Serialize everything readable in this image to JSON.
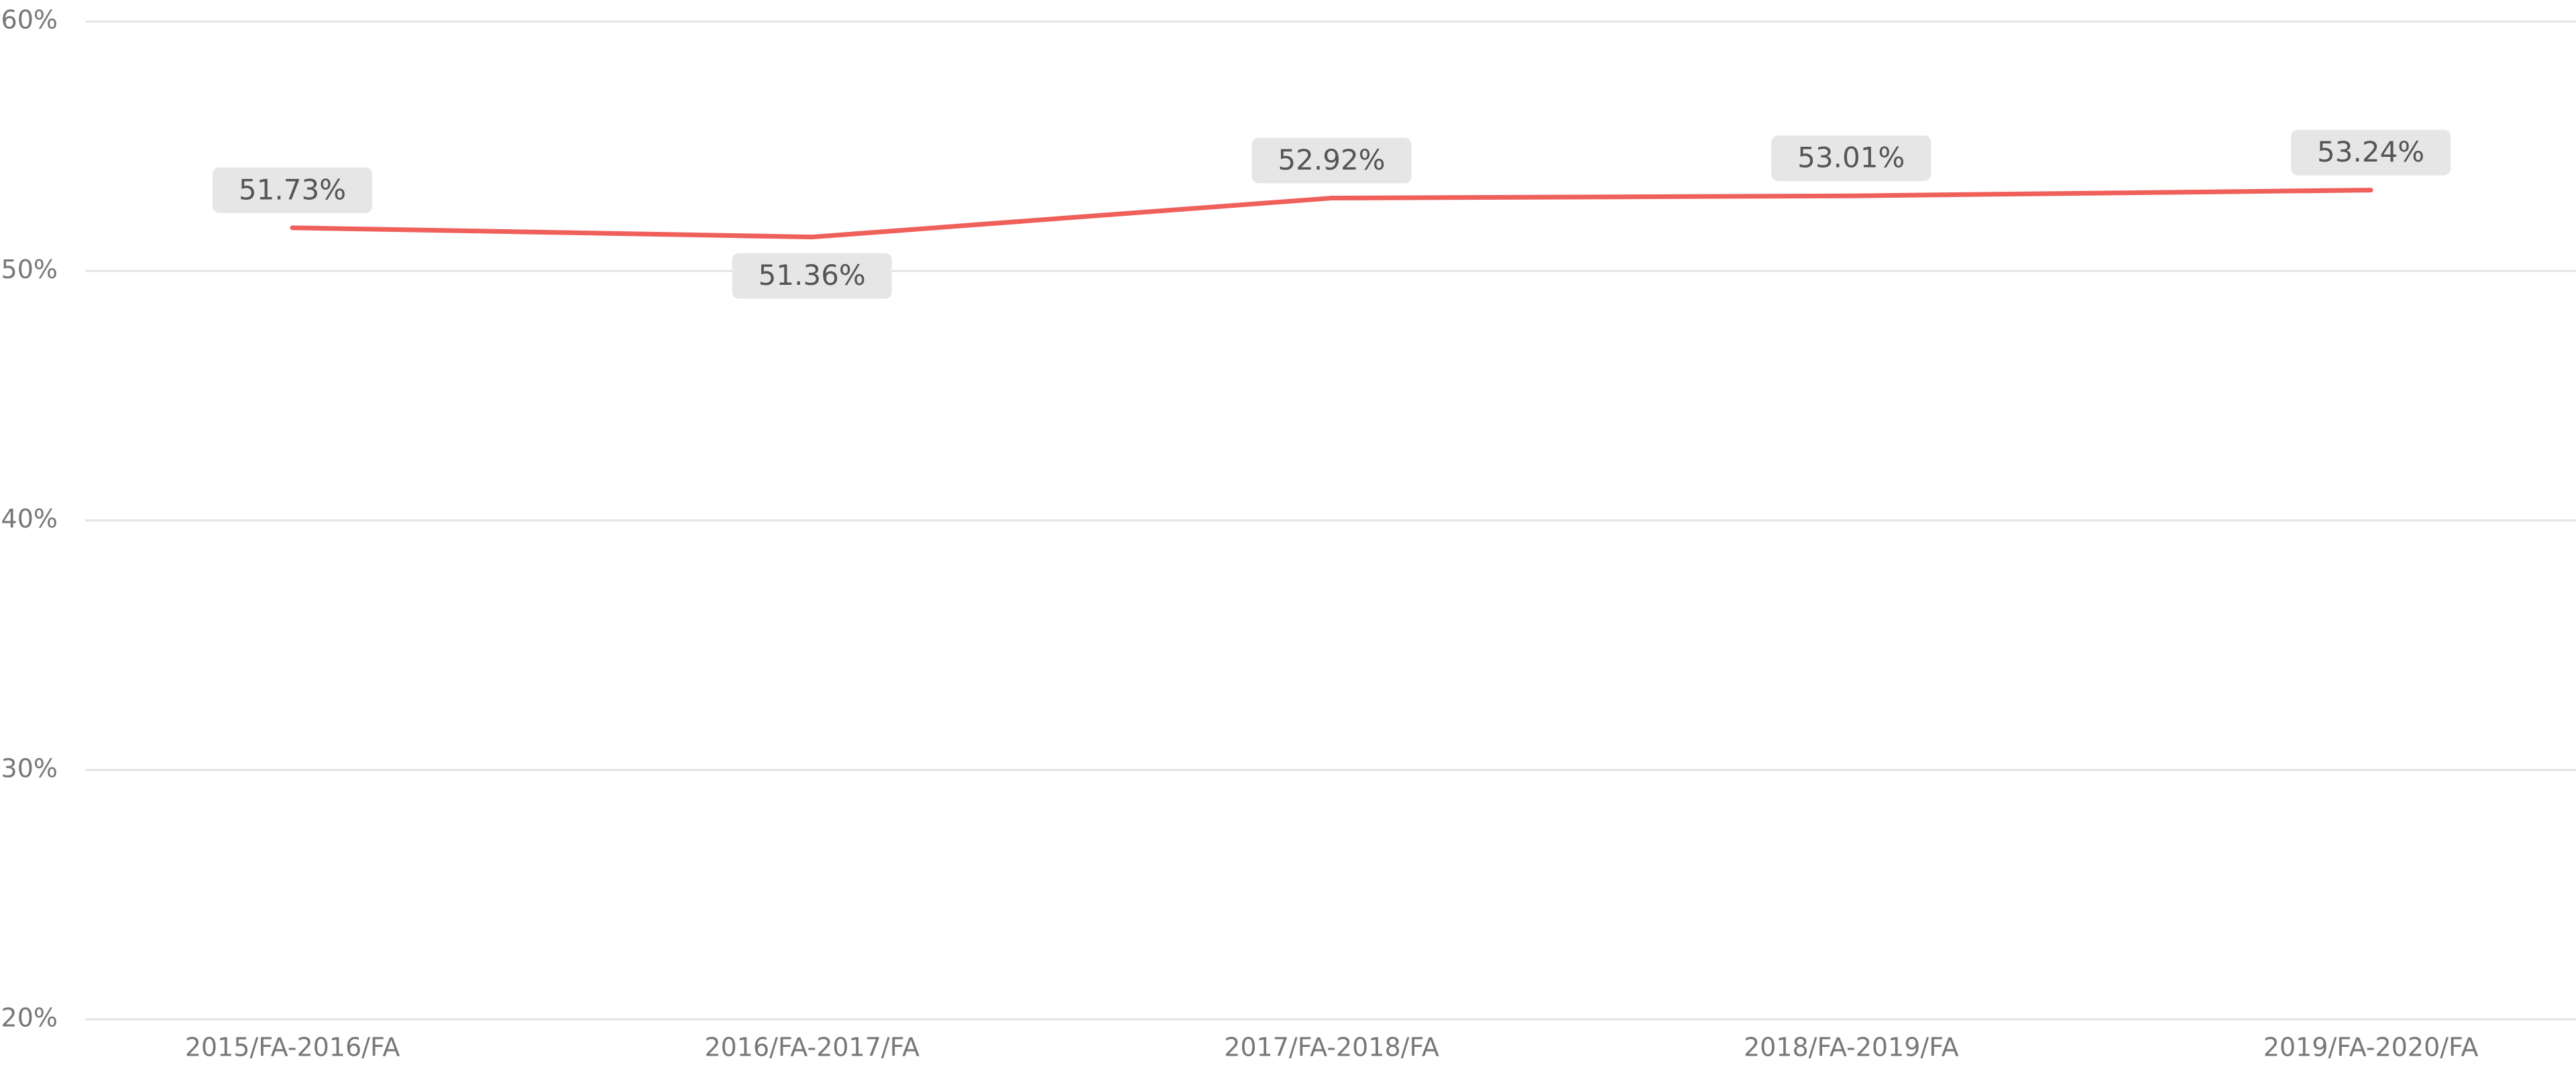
{
  "chart_data": {
    "type": "line",
    "categories": [
      "2015/FA-2016/FA",
      "2016/FA-2017/FA",
      "2017/FA-2018/FA",
      "2018/FA-2019/FA",
      "2019/FA-2020/FA"
    ],
    "series": [
      {
        "color": "#f0605a",
        "values": [
          51.73,
          51.36,
          52.92,
          53.01,
          53.24
        ],
        "value_labels": [
          "51.73%",
          "51.36%",
          "52.92%",
          "53.01%",
          "53.24%"
        ]
      }
    ],
    "ylim": [
      20,
      60
    ],
    "yticks": [
      {
        "value": 20,
        "label": "20%"
      },
      {
        "value": 30,
        "label": "30%"
      },
      {
        "value": 40,
        "label": "40%"
      },
      {
        "value": 50,
        "label": "50%"
      },
      {
        "value": 60,
        "label": "60%"
      }
    ],
    "grid": true
  }
}
